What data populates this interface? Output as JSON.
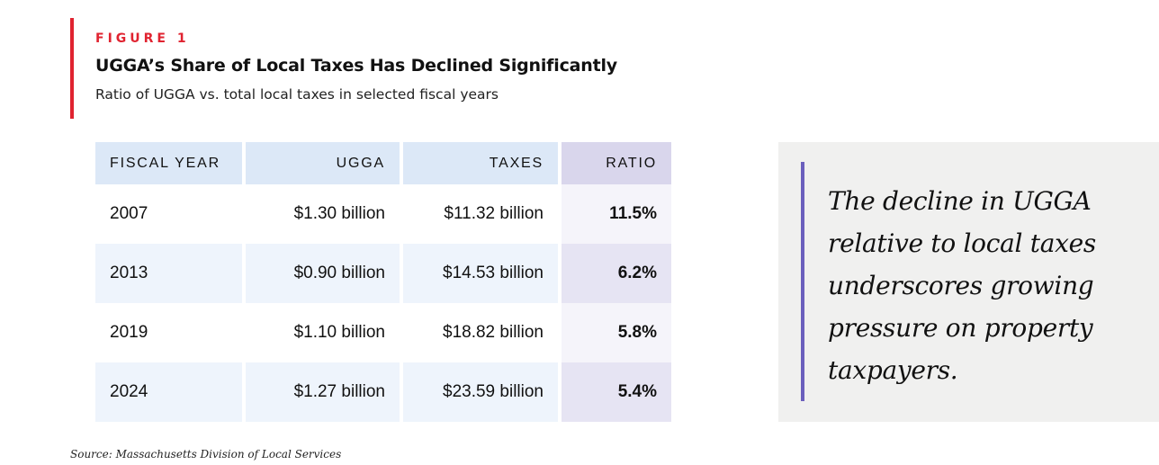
{
  "figure": {
    "label": "FIGURE 1",
    "title": "UGGA’s Share of Local Taxes Has Declined Significantly",
    "subtitle": "Ratio of UGGA vs. total local taxes in selected fiscal years",
    "accent_color": "#e02330"
  },
  "table": {
    "headers": [
      "FISCAL YEAR",
      "UGGA",
      "TAXES",
      "RATIO"
    ],
    "rows": [
      {
        "year": "2007",
        "ugga": "$1.30 billion",
        "taxes": "$11.32 billion",
        "ratio": "11.5%"
      },
      {
        "year": "2013",
        "ugga": "$0.90 billion",
        "taxes": "$14.53 billion",
        "ratio": "6.2%"
      },
      {
        "year": "2019",
        "ugga": "$1.10 billion",
        "taxes": "$18.82 billion",
        "ratio": "5.8%"
      },
      {
        "year": "2024",
        "ugga": "$1.27 billion",
        "taxes": "$23.59 billion",
        "ratio": "5.4%"
      }
    ]
  },
  "callout": {
    "text": "The decline in UGGA relative to local taxes underscores growing pressure on property taxpayers.",
    "accent_color": "#6b5fbd"
  },
  "source": "Source: Massachusetts Division of Local Services"
}
